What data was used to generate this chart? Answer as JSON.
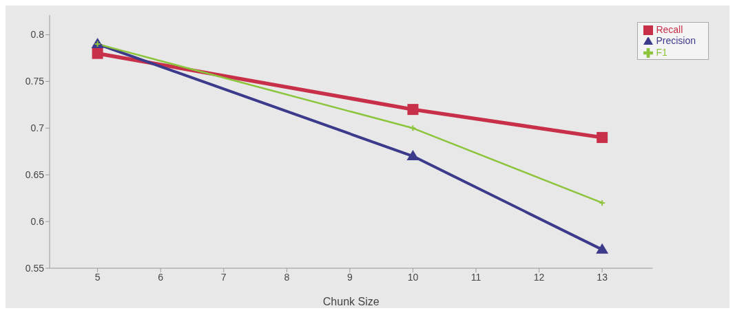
{
  "chart_data": {
    "type": "line",
    "xlabel": "Chunk Size",
    "x": [
      5,
      10,
      13
    ],
    "series": [
      {
        "name": "Recall",
        "color": "#c8304a",
        "values": [
          0.78,
          0.72,
          0.69
        ],
        "marker": "square"
      },
      {
        "name": "Precision",
        "color": "#3c3a8a",
        "values": [
          0.79,
          0.67,
          0.57
        ],
        "marker": "triangle"
      },
      {
        "name": "F1",
        "color": "#8cc43c",
        "values": [
          0.79,
          0.7,
          0.62
        ],
        "marker": "cross"
      }
    ],
    "xlim": [
      4.24,
      13.8
    ],
    "xticks": [
      5,
      6,
      7,
      8,
      9,
      10,
      11,
      12,
      13
    ],
    "ylim": [
      0.55,
      0.821
    ],
    "yticks": [
      {
        "value": 0.55,
        "label": "0.55"
      },
      {
        "value": 0.6,
        "label": "0.6"
      },
      {
        "value": 0.65,
        "label": "0.65"
      },
      {
        "value": 0.7,
        "label": "0.7"
      },
      {
        "value": 0.75,
        "label": "0.75"
      },
      {
        "value": 0.8,
        "label": "0.8"
      }
    ],
    "legend": "top right",
    "grid": false
  }
}
